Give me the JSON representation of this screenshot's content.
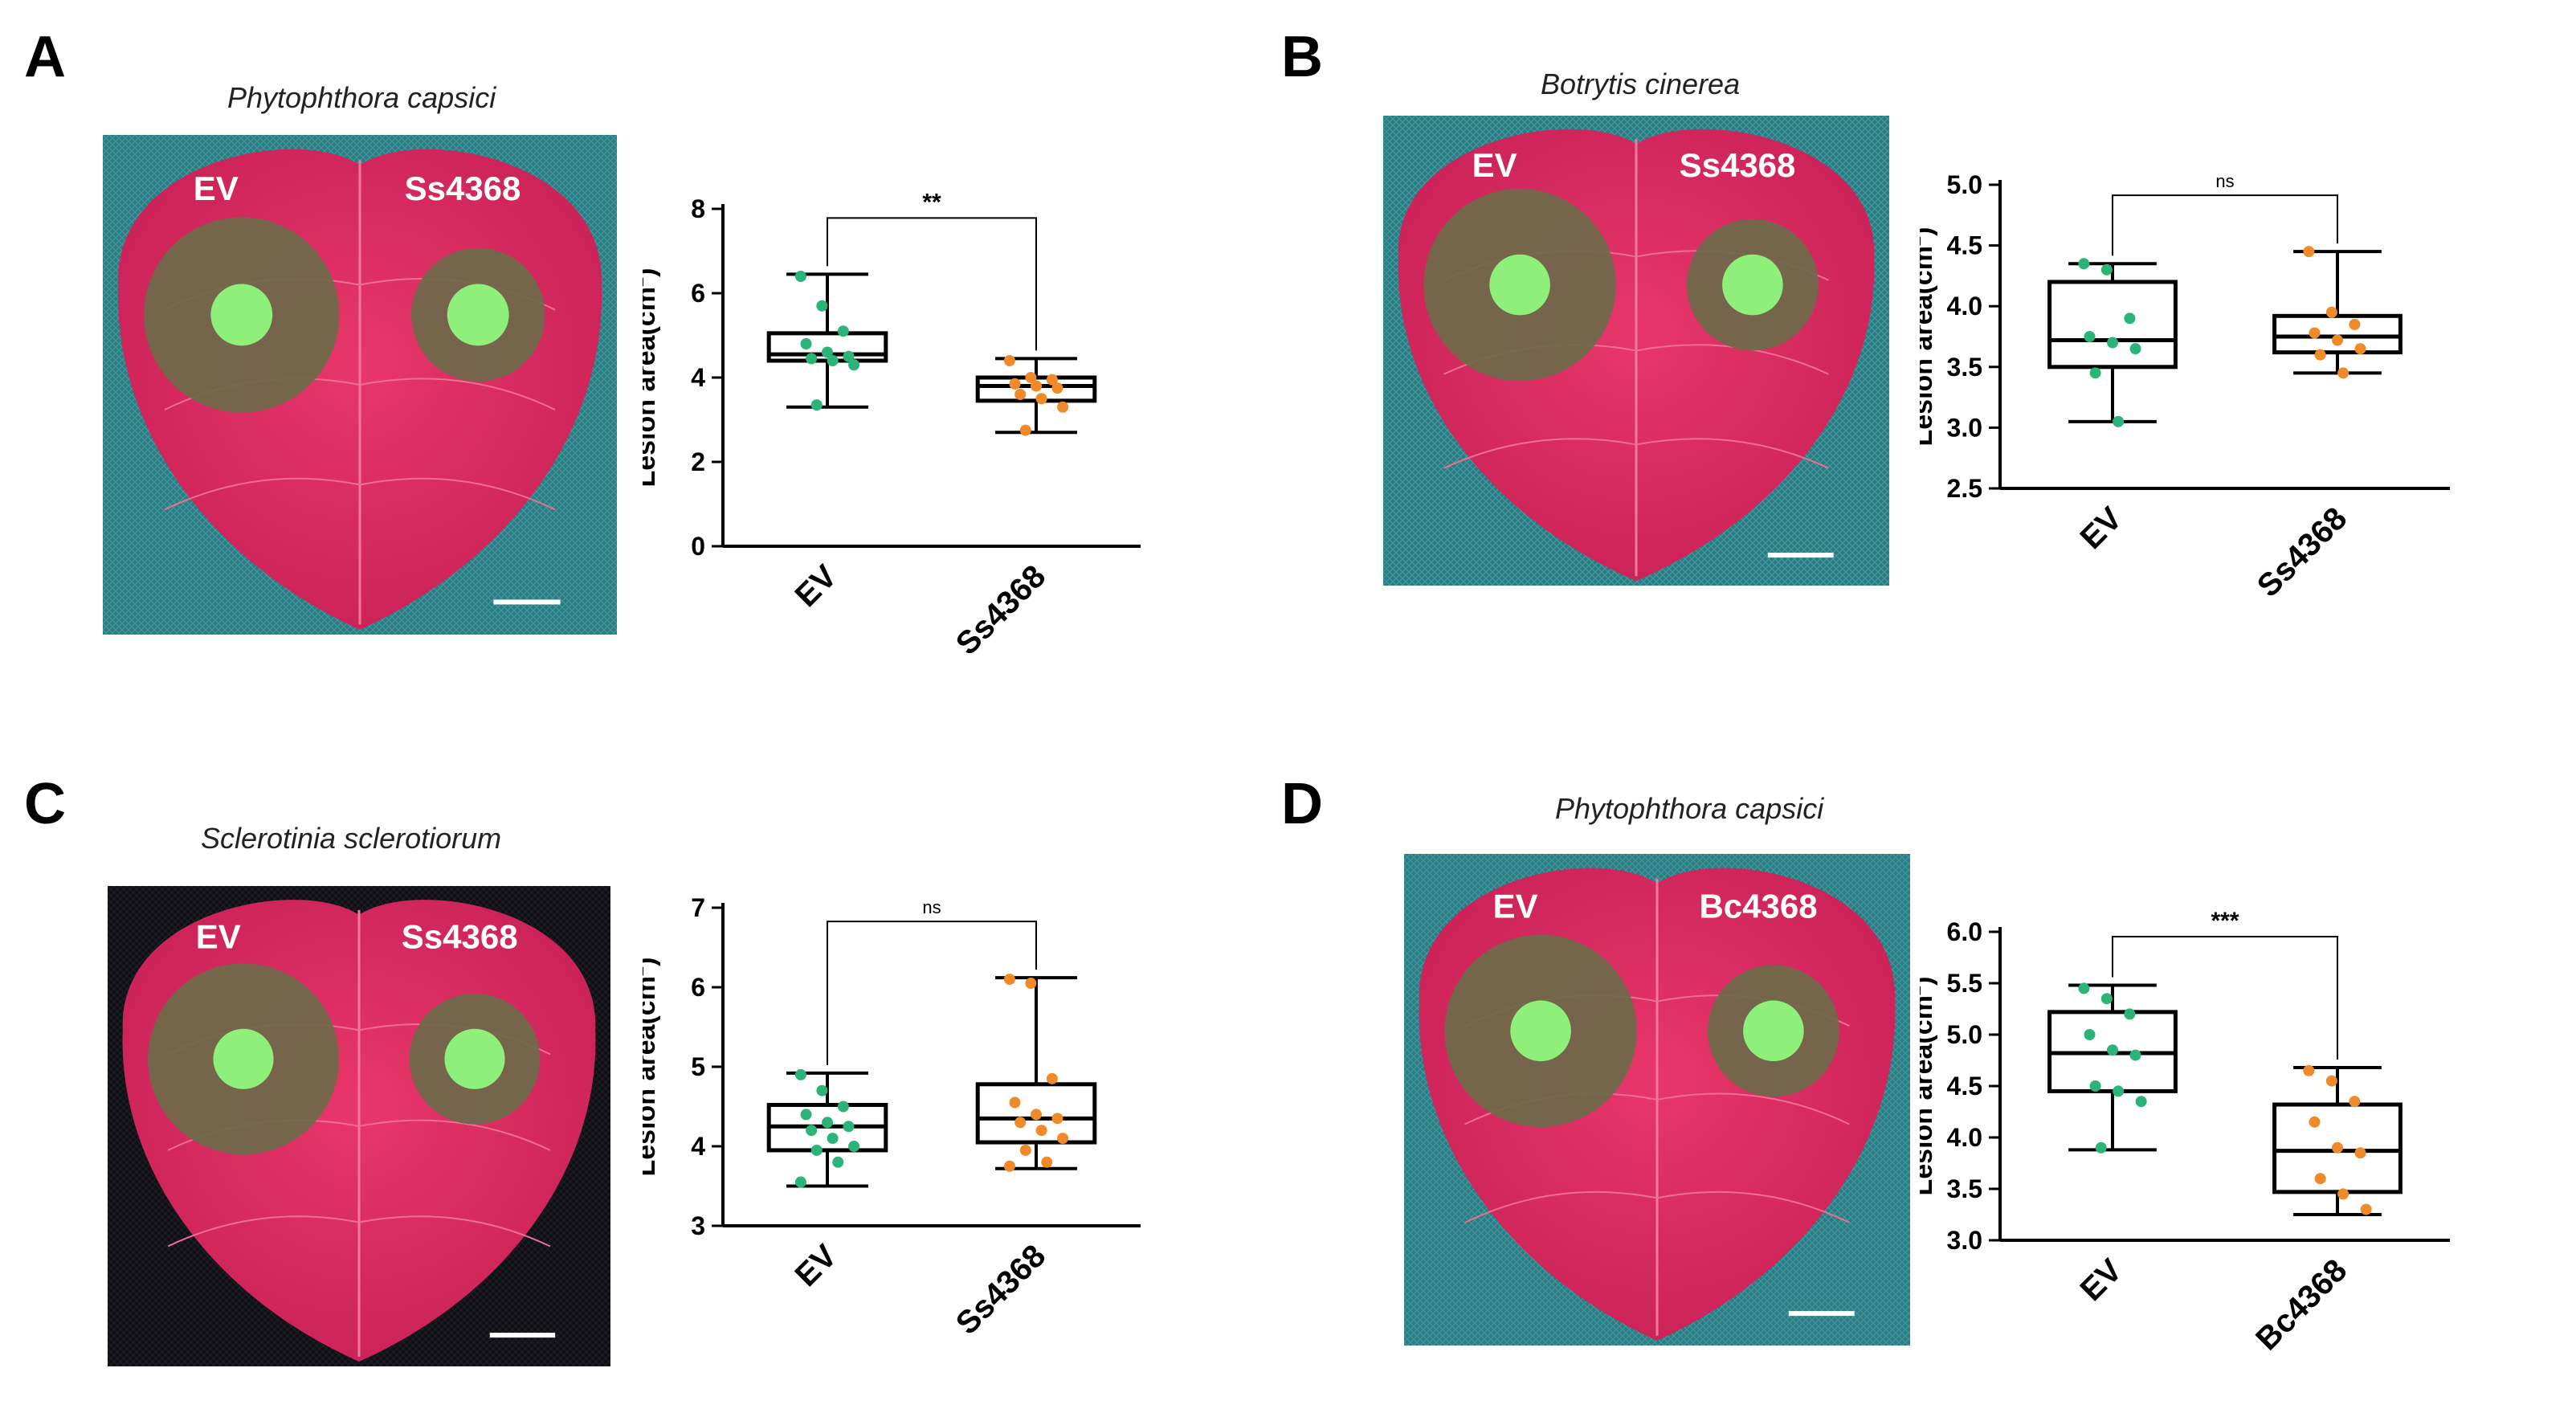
{
  "colors": {
    "ev_dot": "#2bb37a",
    "treat_dot": "#ee8a2a",
    "leaf": "#e8376a",
    "leaf_dark": "#c92158",
    "lesion": "#6c6a4a",
    "disc": "#8ef07a",
    "mesh": "#2f7a80",
    "mesh_dark": "#1b1b22"
  },
  "panels": [
    {
      "label": "A",
      "species": "Phytophthora capsici",
      "photo_left_label": "EV",
      "photo_right_label": "Ss4368",
      "background": "mesh"
    },
    {
      "label": "B",
      "species": "Botrytis cinerea",
      "photo_left_label": "EV",
      "photo_right_label": "Ss4368",
      "background": "mesh"
    },
    {
      "label": "C",
      "species": "Sclerotinia sclerotiorum",
      "photo_left_label": "EV",
      "photo_right_label": "Ss4368",
      "background": "dark"
    },
    {
      "label": "D",
      "species": "Phytophthora capsici",
      "photo_left_label": "EV",
      "photo_right_label": "Bc4368",
      "background": "mesh"
    }
  ],
  "chart_data": [
    {
      "type": "box",
      "panel": "A",
      "ylabel_main": "Lesion area(cm",
      "ylabel_sup": "2",
      "ylabel_end": ")",
      "ylim": [
        0,
        8
      ],
      "yticks": [
        "0",
        "2",
        "4",
        "6",
        "8"
      ],
      "categories": [
        "EV",
        "Ss4368"
      ],
      "significance": "**",
      "boxes": [
        {
          "min": 3.3,
          "q1": 4.4,
          "median": 4.55,
          "q3": 5.05,
          "max": 6.45,
          "points": [
            6.4,
            5.7,
            5.1,
            4.8,
            4.6,
            4.5,
            4.45,
            4.4,
            4.3,
            3.35
          ]
        },
        {
          "min": 2.7,
          "q1": 3.45,
          "median": 3.8,
          "q3": 4.0,
          "max": 4.45,
          "points": [
            4.4,
            4.0,
            3.95,
            3.85,
            3.8,
            3.75,
            3.6,
            3.5,
            3.3,
            2.75
          ]
        }
      ]
    },
    {
      "type": "box",
      "panel": "B",
      "ylabel_main": "Lesion area(cm",
      "ylabel_sup": "2",
      "ylabel_end": ")",
      "ylim": [
        2.5,
        5.0
      ],
      "yticks": [
        "2.5",
        "3.0",
        "3.5",
        "4.0",
        "4.5",
        "5.0"
      ],
      "categories": [
        "EV",
        "Ss4368"
      ],
      "significance": "ns",
      "boxes": [
        {
          "min": 3.05,
          "q1": 3.5,
          "median": 3.72,
          "q3": 4.2,
          "max": 4.35,
          "points": [
            4.35,
            4.3,
            3.9,
            3.75,
            3.7,
            3.65,
            3.45,
            3.05
          ]
        },
        {
          "min": 3.45,
          "q1": 3.62,
          "median": 3.75,
          "q3": 3.92,
          "max": 4.45,
          "points": [
            4.45,
            3.95,
            3.85,
            3.78,
            3.72,
            3.65,
            3.6,
            3.45
          ]
        }
      ]
    },
    {
      "type": "box",
      "panel": "C",
      "ylabel_main": "Lesion area(cm",
      "ylabel_sup": "2",
      "ylabel_end": ")",
      "ylim": [
        3,
        7
      ],
      "yticks": [
        "3",
        "4",
        "5",
        "6",
        "7"
      ],
      "categories": [
        "EV",
        "Ss4368"
      ],
      "significance": "ns",
      "boxes": [
        {
          "min": 3.5,
          "q1": 3.95,
          "median": 4.25,
          "q3": 4.52,
          "max": 4.92,
          "points": [
            4.9,
            4.7,
            4.5,
            4.4,
            4.3,
            4.25,
            4.2,
            4.1,
            4.0,
            3.95,
            3.8,
            3.55
          ]
        },
        {
          "min": 3.72,
          "q1": 4.05,
          "median": 4.35,
          "q3": 4.78,
          "max": 6.12,
          "points": [
            6.1,
            6.05,
            4.85,
            4.55,
            4.4,
            4.35,
            4.3,
            4.2,
            4.1,
            3.95,
            3.8,
            3.75
          ]
        }
      ]
    },
    {
      "type": "box",
      "panel": "D",
      "ylabel_main": "Lesion area(cm",
      "ylabel_sup": "2",
      "ylabel_end": ")",
      "ylim": [
        3.0,
        6.0
      ],
      "yticks": [
        "3.0",
        "3.5",
        "4.0",
        "4.5",
        "5.0",
        "5.5",
        "6.0"
      ],
      "categories": [
        "EV",
        "Bc4368"
      ],
      "significance": "***",
      "boxes": [
        {
          "min": 3.88,
          "q1": 4.45,
          "median": 4.82,
          "q3": 5.22,
          "max": 5.48,
          "points": [
            5.45,
            5.35,
            5.2,
            5.0,
            4.85,
            4.8,
            4.5,
            4.45,
            4.35,
            3.9
          ]
        },
        {
          "min": 3.25,
          "q1": 3.47,
          "median": 3.87,
          "q3": 4.32,
          "max": 4.68,
          "points": [
            4.65,
            4.55,
            4.35,
            4.15,
            3.9,
            3.85,
            3.6,
            3.45,
            3.3
          ]
        }
      ]
    }
  ]
}
